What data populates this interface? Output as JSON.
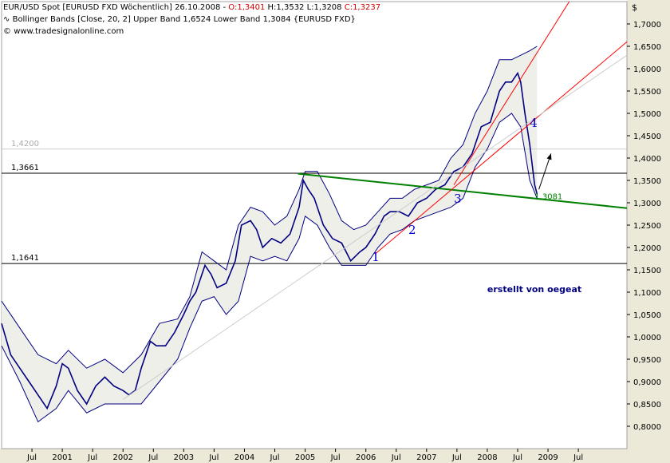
{
  "header": {
    "line1_prefix": "EUR/USD Spot [EURUSD FXD  Wöchentlich] 26.10.2008 - ",
    "line1_open": "O:1,3401",
    "line1_mid": " H:1,3532 L:1,3208 ",
    "line1_close": "C:1,3237",
    "line2": "Bollinger Bands [Close, 20, 2] Upper Band 1,6524 Lower Band 1,3084 {EURUSD FXD}",
    "line3": "www.tradesignalonline.com"
  },
  "chart_data": {
    "type": "line",
    "title": "EUR/USD Spot [EURUSD FXD  Wöchentlich]",
    "y_axis_unit": "$",
    "ylim": [
      0.75,
      1.75
    ],
    "y_ticks": [
      "1,7000",
      "1,6500",
      "1,6000",
      "1,5500",
      "1,5000",
      "1,4500",
      "1,4000",
      "1,3500",
      "1,3000",
      "1,2500",
      "1,2000",
      "1,1500",
      "1,1000",
      "1,0500",
      "1,0000",
      "0,9500",
      "0,9000",
      "0,8500",
      "0,8000"
    ],
    "y_tick_values": [
      1.7,
      1.65,
      1.6,
      1.55,
      1.5,
      1.45,
      1.4,
      1.35,
      1.3,
      1.25,
      1.2,
      1.15,
      1.1,
      1.05,
      1.0,
      0.95,
      0.9,
      0.85,
      0.8
    ],
    "x_ticks": [
      "Jul",
      "2001",
      "Jul",
      "2002",
      "Jul",
      "2003",
      "Jul",
      "2004",
      "Jul",
      "2005",
      "Jul",
      "2006",
      "Jul",
      "2007",
      "Jul",
      "2008",
      "Jul",
      "2009",
      "Jul"
    ],
    "x_tick_values": [
      2000.5,
      2001.0,
      2001.5,
      2002.0,
      2002.5,
      2003.0,
      2003.5,
      2004.0,
      2004.5,
      2005.0,
      2005.5,
      2006.0,
      2006.5,
      2007.0,
      2007.5,
      2008.0,
      2008.5,
      2009.0,
      2009.5
    ],
    "xlim": [
      2000.0,
      2010.3
    ],
    "series": [
      {
        "name": "EUR/USD Spot",
        "color": "#000080",
        "x": [
          2000.0,
          2000.15,
          2000.3,
          2000.45,
          2000.6,
          2000.75,
          2000.9,
          2001.0,
          2001.1,
          2001.25,
          2001.4,
          2001.55,
          2001.7,
          2001.85,
          2002.0,
          2002.1,
          2002.2,
          2002.3,
          2002.45,
          2002.55,
          2002.7,
          2002.85,
          2003.0,
          2003.1,
          2003.2,
          2003.35,
          2003.45,
          2003.55,
          2003.7,
          2003.85,
          2003.95,
          2004.1,
          2004.2,
          2004.3,
          2004.45,
          2004.6,
          2004.75,
          2004.9,
          2004.97,
          2005.05,
          2005.15,
          2005.3,
          2005.45,
          2005.6,
          2005.75,
          2005.9,
          2006.0,
          2006.15,
          2006.3,
          2006.4,
          2006.55,
          2006.7,
          2006.85,
          2007.0,
          2007.15,
          2007.3,
          2007.45,
          2007.6,
          2007.75,
          2007.9,
          2008.05,
          2008.2,
          2008.3,
          2008.4,
          2008.5,
          2008.55,
          2008.62,
          2008.7,
          2008.78,
          2008.82
        ],
        "y": [
          1.03,
          0.96,
          0.93,
          0.9,
          0.87,
          0.84,
          0.89,
          0.94,
          0.93,
          0.88,
          0.85,
          0.89,
          0.91,
          0.89,
          0.88,
          0.87,
          0.88,
          0.93,
          0.99,
          0.98,
          0.98,
          1.01,
          1.05,
          1.08,
          1.1,
          1.16,
          1.14,
          1.11,
          1.12,
          1.17,
          1.25,
          1.26,
          1.24,
          1.2,
          1.22,
          1.21,
          1.23,
          1.29,
          1.35,
          1.33,
          1.31,
          1.25,
          1.22,
          1.21,
          1.17,
          1.19,
          1.2,
          1.23,
          1.27,
          1.28,
          1.28,
          1.27,
          1.3,
          1.31,
          1.33,
          1.34,
          1.37,
          1.38,
          1.41,
          1.47,
          1.48,
          1.55,
          1.57,
          1.57,
          1.59,
          1.57,
          1.5,
          1.43,
          1.34,
          1.32
        ]
      },
      {
        "name": "Upper Band",
        "color": "#000080",
        "x": [
          2000.0,
          2000.3,
          2000.6,
          2000.9,
          2001.1,
          2001.4,
          2001.7,
          2002.0,
          2002.3,
          2002.6,
          2002.9,
          2003.1,
          2003.3,
          2003.5,
          2003.7,
          2003.9,
          2004.1,
          2004.3,
          2004.5,
          2004.7,
          2004.9,
          2005.0,
          2005.2,
          2005.4,
          2005.6,
          2005.8,
          2006.0,
          2006.2,
          2006.4,
          2006.6,
          2006.8,
          2007.0,
          2007.2,
          2007.4,
          2007.6,
          2007.8,
          2008.0,
          2008.2,
          2008.4,
          2008.55,
          2008.7,
          2008.82
        ],
        "y": [
          1.08,
          1.02,
          0.96,
          0.94,
          0.97,
          0.93,
          0.95,
          0.92,
          0.96,
          1.03,
          1.04,
          1.09,
          1.19,
          1.17,
          1.15,
          1.25,
          1.29,
          1.28,
          1.25,
          1.27,
          1.33,
          1.37,
          1.37,
          1.32,
          1.26,
          1.24,
          1.25,
          1.28,
          1.31,
          1.31,
          1.33,
          1.34,
          1.35,
          1.4,
          1.43,
          1.5,
          1.55,
          1.62,
          1.62,
          1.63,
          1.64,
          1.65
        ]
      },
      {
        "name": "Lower Band",
        "color": "#000080",
        "x": [
          2000.0,
          2000.3,
          2000.6,
          2000.9,
          2001.1,
          2001.4,
          2001.7,
          2002.0,
          2002.3,
          2002.6,
          2002.9,
          2003.1,
          2003.3,
          2003.5,
          2003.7,
          2003.9,
          2004.1,
          2004.3,
          2004.5,
          2004.7,
          2004.9,
          2005.0,
          2005.2,
          2005.4,
          2005.6,
          2005.8,
          2006.0,
          2006.2,
          2006.4,
          2006.6,
          2006.8,
          2007.0,
          2007.2,
          2007.4,
          2007.6,
          2007.8,
          2008.0,
          2008.2,
          2008.4,
          2008.55,
          2008.7,
          2008.82
        ],
        "y": [
          0.98,
          0.9,
          0.81,
          0.84,
          0.88,
          0.83,
          0.85,
          0.85,
          0.85,
          0.9,
          0.95,
          1.02,
          1.08,
          1.09,
          1.05,
          1.08,
          1.18,
          1.17,
          1.18,
          1.17,
          1.22,
          1.27,
          1.25,
          1.2,
          1.16,
          1.16,
          1.16,
          1.2,
          1.23,
          1.24,
          1.26,
          1.27,
          1.28,
          1.29,
          1.31,
          1.38,
          1.42,
          1.48,
          1.5,
          1.47,
          1.35,
          1.31
        ]
      }
    ],
    "horizontal_lines": [
      {
        "label": "1,4200",
        "value": 1.42,
        "color": "#cccccc"
      },
      {
        "label": "1,3661",
        "value": 1.3661,
        "color": "#000000"
      },
      {
        "label": "1,1641",
        "value": 1.1641,
        "color": "#000000"
      }
    ],
    "trendlines": [
      {
        "color": "#008000",
        "x": [
          2004.88,
          2010.3
        ],
        "y": [
          1.365,
          1.288
        ]
      },
      {
        "color": "#ff0000",
        "x": [
          2006.15,
          2010.3
        ],
        "y": [
          1.185,
          1.66
        ]
      },
      {
        "color": "#ff0000",
        "x": [
          2007.45,
          2009.35
        ],
        "y": [
          1.34,
          1.75
        ]
      },
      {
        "color": "#cccccc",
        "x": [
          2002.0,
          2010.3
        ],
        "y": [
          0.86,
          1.63
        ]
      }
    ],
    "annotations": [
      {
        "text": "1",
        "x": 2006.1,
        "y": 1.17
      },
      {
        "text": "2",
        "x": 2006.7,
        "y": 1.23
      },
      {
        "text": "3",
        "x": 2007.45,
        "y": 1.3
      },
      {
        "text": "4",
        "x": 2008.7,
        "y": 1.47
      },
      {
        "text": "1,3081",
        "x": 2008.78,
        "y": 1.3081
      },
      {
        "text": "erstellt von oegeat",
        "x": 2008.0,
        "y": 1.1
      }
    ],
    "arrow": {
      "x": [
        2008.85,
        2009.05
      ],
      "y": [
        1.33,
        1.41
      ]
    },
    "grid": false,
    "colors": {
      "background": "#ffffff",
      "plot_frame": "#a0a0a0",
      "panel": "#ece9d8",
      "annotation_blue": "#0000cc",
      "oegeat_text": "#000080",
      "label_1_3081": "#008000"
    }
  }
}
